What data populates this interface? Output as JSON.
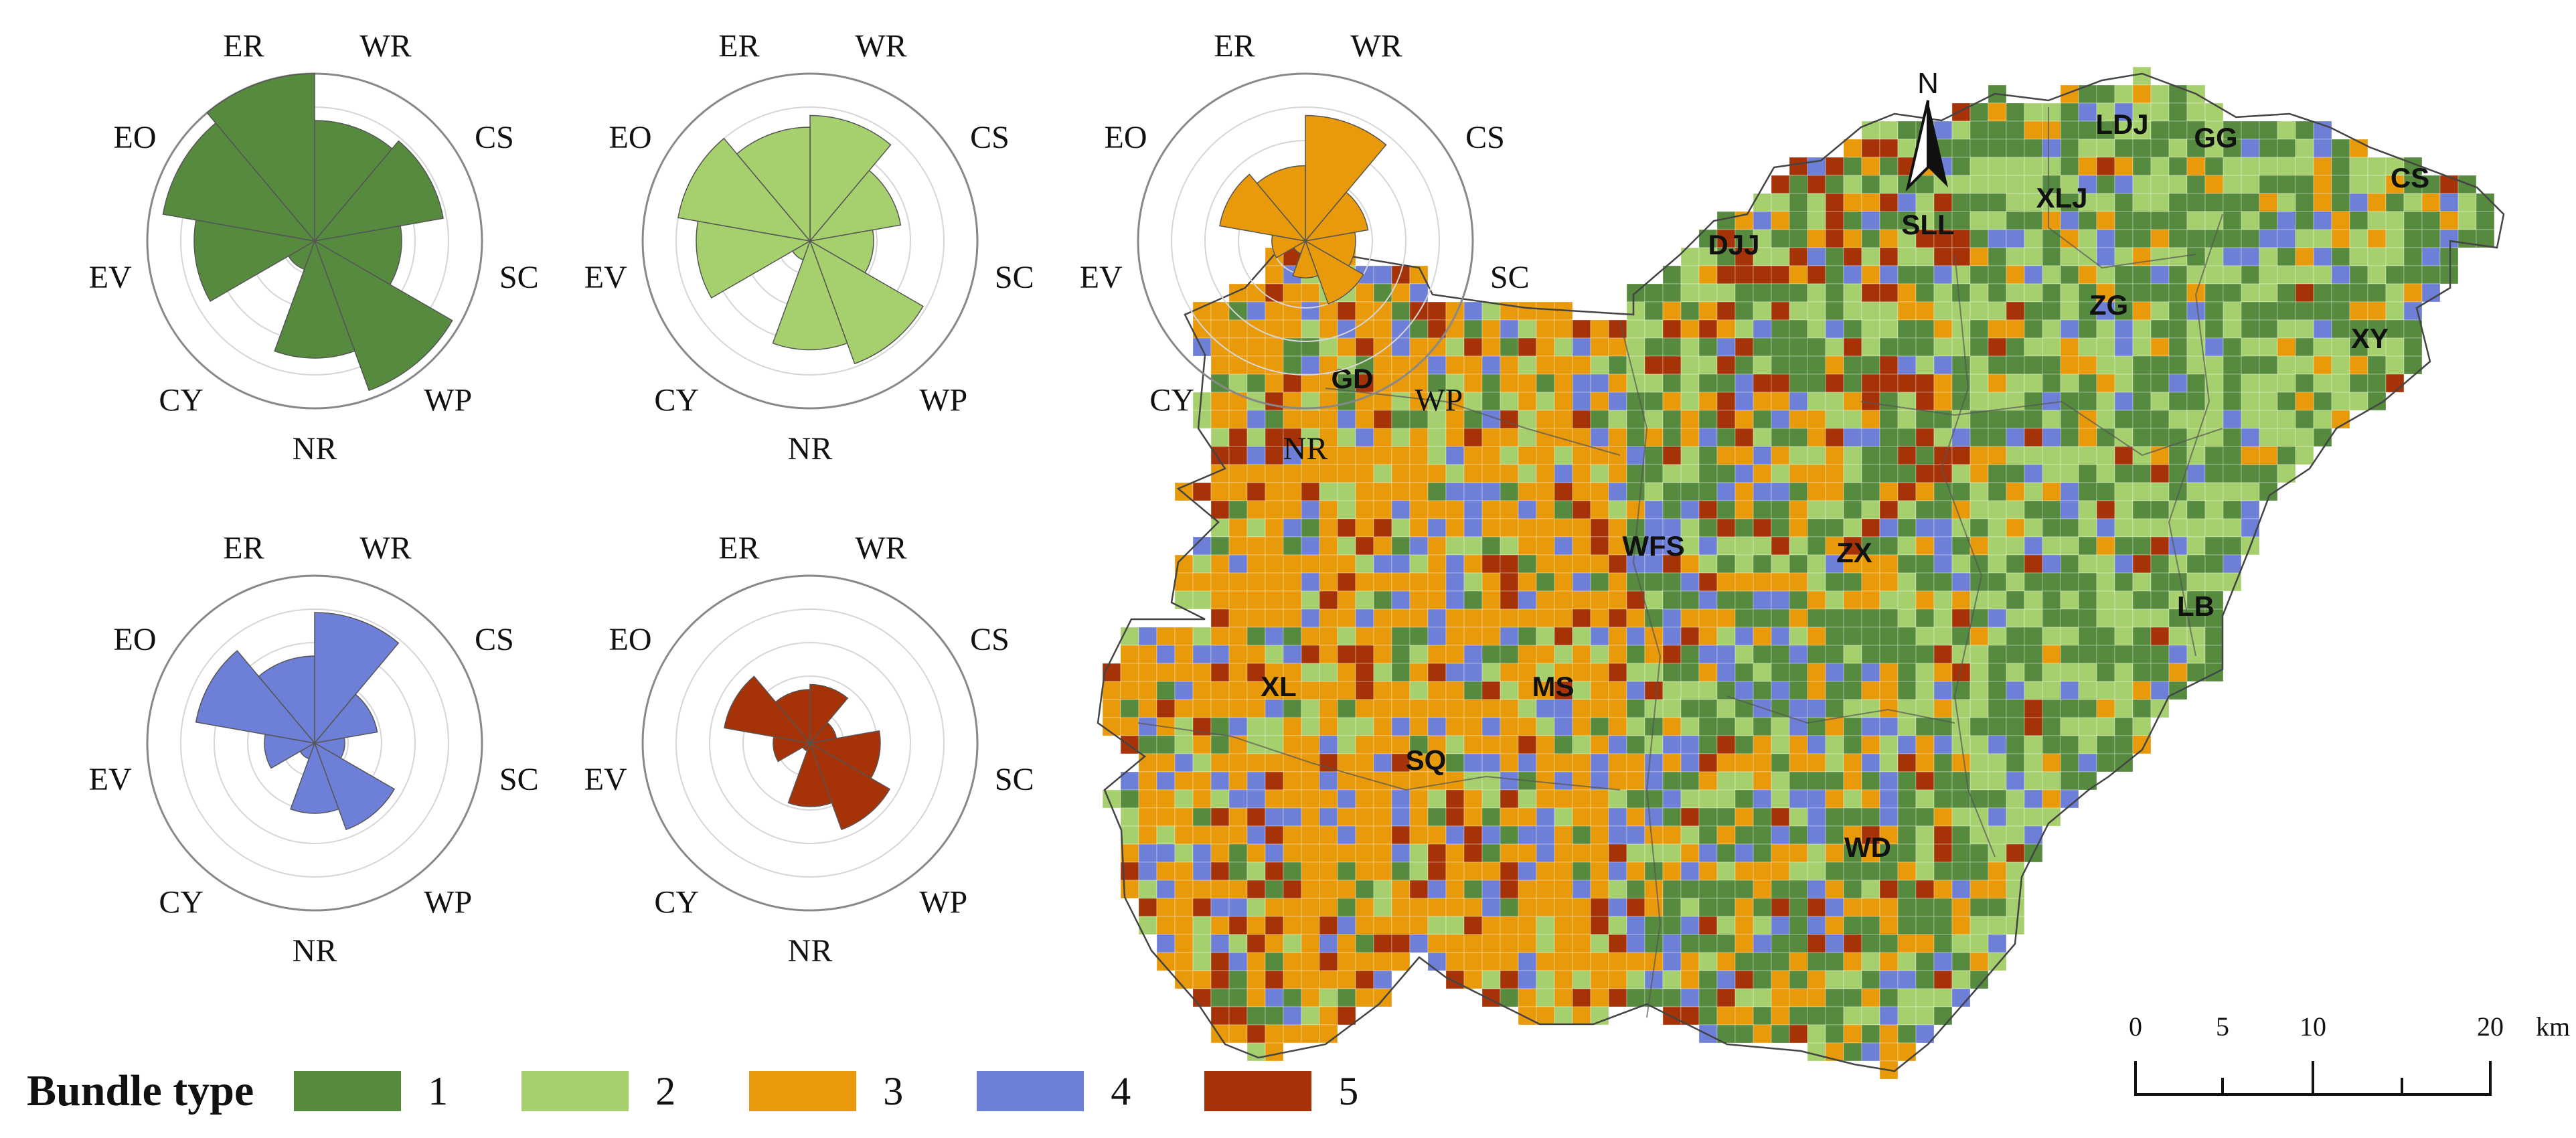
{
  "axis_labels": [
    "WR",
    "CS",
    "SC",
    "WP",
    "NR",
    "CY",
    "EV",
    "EO",
    "ER"
  ],
  "bundles": [
    {
      "id": "1",
      "color": "#558a3f",
      "values": [
        0.72,
        0.78,
        0.52,
        0.95,
        0.7,
        0.18,
        0.72,
        0.92,
        1.0
      ]
    },
    {
      "id": "2",
      "color": "#a6d06e",
      "values": [
        0.75,
        0.55,
        0.38,
        0.78,
        0.65,
        0.12,
        0.68,
        0.8,
        0.68
      ]
    },
    {
      "id": "3",
      "color": "#e89a0a",
      "values": [
        0.75,
        0.38,
        0.3,
        0.4,
        0.22,
        0.08,
        0.2,
        0.52,
        0.45
      ]
    },
    {
      "id": "4",
      "color": "#6d7fd6",
      "values": [
        0.78,
        0.38,
        0.18,
        0.55,
        0.42,
        0.1,
        0.3,
        0.72,
        0.52
      ]
    },
    {
      "id": "5",
      "color": "#a63308",
      "values": [
        0.35,
        0.16,
        0.42,
        0.55,
        0.38,
        0.05,
        0.22,
        0.52,
        0.32
      ]
    }
  ],
  "legend": {
    "title": "Bundle type",
    "items": [
      "1",
      "2",
      "3",
      "4",
      "5"
    ]
  },
  "north_label": "N",
  "scale": {
    "ticks": [
      "0",
      "5",
      "10",
      "20"
    ],
    "unit": "km"
  },
  "regions": [
    "LDJ",
    "GG",
    "CS",
    "XLJ",
    "SLL",
    "DJJ",
    "ZG",
    "XY",
    "GD",
    "WFS",
    "ZX",
    "LB",
    "XL",
    "MS",
    "SQ",
    "WD"
  ]
}
